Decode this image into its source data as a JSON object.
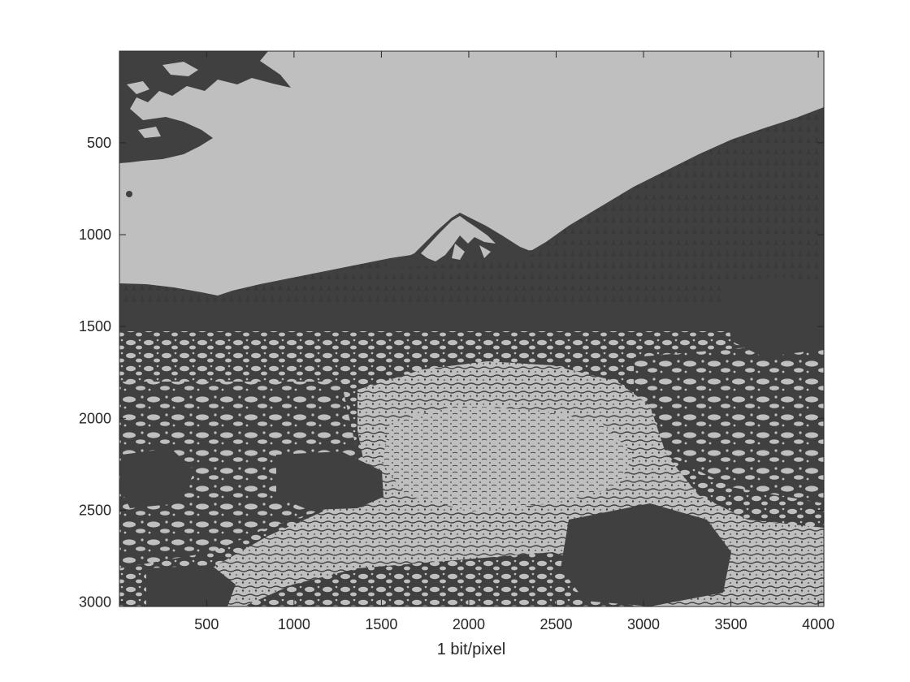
{
  "figure": {
    "xlabel": "1 bit/pixel",
    "x_axis": {
      "range": [
        1,
        4032
      ],
      "ticks": [
        500,
        1000,
        1500,
        2000,
        2500,
        3000,
        3500,
        4000
      ],
      "tick_labels": [
        "500",
        "1000",
        "1500",
        "2000",
        "2500",
        "3000",
        "3500",
        "4000"
      ]
    },
    "y_axis": {
      "range": [
        1,
        3024
      ],
      "direction": "reversed",
      "ticks": [
        500,
        1000,
        1500,
        2000,
        2500,
        3000
      ],
      "tick_labels": [
        "500",
        "1000",
        "1500",
        "2000",
        "2500",
        "3000"
      ]
    },
    "image": {
      "subject": "rocky river with snow-capped mountain and forested hillside, posterized to 1 bit per pixel",
      "palette": {
        "light": "#bfbfbf",
        "dark": "#404040"
      }
    },
    "colors": {
      "axis": "#262626",
      "background": "#ffffff"
    }
  }
}
